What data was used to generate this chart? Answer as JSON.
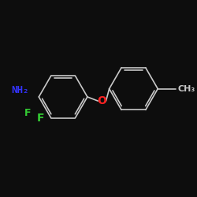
{
  "bg_color": "#0d0d0d",
  "bond_color": "#c8c8c8",
  "atom_colors": {
    "F": "#33cc33",
    "O": "#ff2222",
    "N": "#3333ff",
    "C": "#c8c8c8"
  },
  "bond_width": 1.2,
  "font_size_F": 9,
  "font_size_O": 9,
  "font_size_NH2": 9,
  "font_size_CH3": 8
}
